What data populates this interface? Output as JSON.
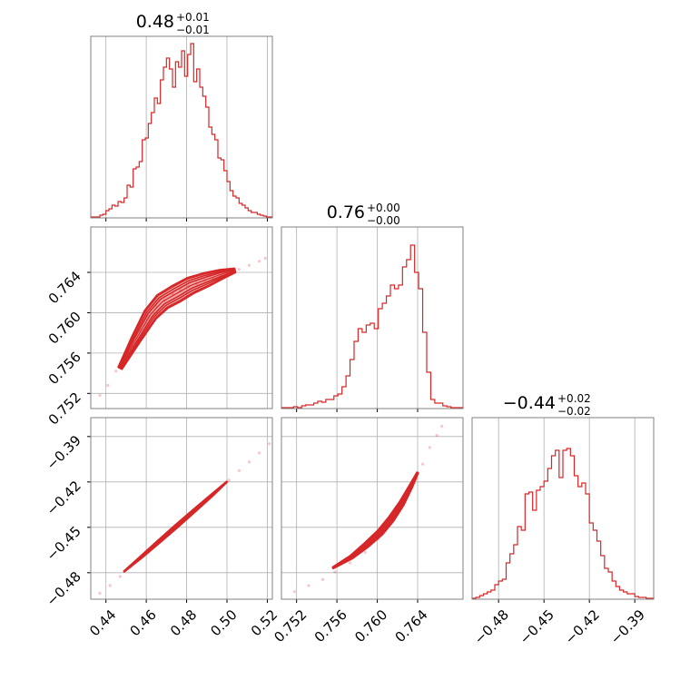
{
  "chart_data": {
    "type": "corner",
    "color": "#d62728",
    "panel_frame_color": "#808080",
    "grid": true,
    "parameters": [
      {
        "title_value": "0.48",
        "title_plus": "+0.01",
        "title_minus": "−0.01",
        "range": [
          0.4325,
          0.5225
        ],
        "ticks": [
          0.44,
          0.46,
          0.48,
          0.5,
          0.52
        ],
        "tick_labels": [
          "0.44",
          "0.46",
          "0.48",
          "0.50",
          "0.52"
        ],
        "histogram": {
          "bin_start": 0.4325,
          "bin_end": 0.5225,
          "heights": [
            0.005,
            0.005,
            0.005,
            0.015,
            0.02,
            0.04,
            0.05,
            0.07,
            0.065,
            0.09,
            0.085,
            0.11,
            0.18,
            0.17,
            0.27,
            0.28,
            0.31,
            0.43,
            0.44,
            0.52,
            0.58,
            0.66,
            0.63,
            0.76,
            0.83,
            0.88,
            0.82,
            0.72,
            0.86,
            0.83,
            0.92,
            0.78,
            0.9,
            0.96,
            0.75,
            0.82,
            0.72,
            0.67,
            0.61,
            0.5,
            0.46,
            0.43,
            0.33,
            0.32,
            0.26,
            0.2,
            0.15,
            0.12,
            0.11,
            0.08,
            0.07,
            0.055,
            0.04,
            0.03,
            0.03,
            0.02,
            0.015,
            0.01,
            0.005,
            0.005
          ]
        }
      },
      {
        "title_value": "0.76",
        "title_plus": "+0.00",
        "title_minus": "−0.00",
        "range": [
          0.7505,
          0.7685
        ],
        "ticks": [
          0.752,
          0.756,
          0.76,
          0.764
        ],
        "tick_labels": [
          "0.752",
          "0.756",
          "0.760",
          "0.764"
        ],
        "histogram": {
          "bin_start": 0.7505,
          "bin_end": 0.7685,
          "heights": [
            0.005,
            0.005,
            0.005,
            0.01,
            0.005,
            0.015,
            0.02,
            0.02,
            0.03,
            0.04,
            0.035,
            0.05,
            0.05,
            0.07,
            0.08,
            0.12,
            0.18,
            0.27,
            0.37,
            0.44,
            0.42,
            0.46,
            0.47,
            0.44,
            0.55,
            0.58,
            0.62,
            0.68,
            0.66,
            0.68,
            0.78,
            0.82,
            0.9,
            0.75,
            0.66,
            0.42,
            0.2,
            0.05,
            0.03,
            0.03,
            0.015,
            0.01,
            0.005,
            0.005,
            0.005
          ]
        }
      },
      {
        "title_value": "−0.44",
        "title_plus": "+0.02",
        "title_minus": "−0.02",
        "range": [
          -0.4975,
          -0.3775
        ],
        "ticks": [
          -0.48,
          -0.45,
          -0.42,
          -0.39
        ],
        "tick_labels": [
          "−0.48",
          "−0.45",
          "−0.42",
          "−0.39"
        ],
        "histogram": {
          "bin_start": -0.4975,
          "bin_end": -0.3775,
          "heights": [
            0.005,
            0.01,
            0.02,
            0.03,
            0.04,
            0.05,
            0.08,
            0.1,
            0.11,
            0.2,
            0.25,
            0.3,
            0.4,
            0.38,
            0.58,
            0.59,
            0.49,
            0.6,
            0.62,
            0.65,
            0.72,
            0.79,
            0.82,
            0.67,
            0.82,
            0.83,
            0.79,
            0.68,
            0.62,
            0.64,
            0.58,
            0.42,
            0.38,
            0.32,
            0.24,
            0.17,
            0.15,
            0.1,
            0.07,
            0.05,
            0.04,
            0.03,
            0.03,
            0.015,
            0.01,
            0.01,
            0.005,
            0.005
          ]
        }
      }
    ],
    "pair_panels": [
      {
        "x_param": 0,
        "y_param": 1,
        "samples": [
          [
            0.437,
            0.7518
          ],
          [
            0.441,
            0.7528
          ],
          [
            0.445,
            0.7542
          ],
          [
            0.449,
            0.7553
          ],
          [
            0.453,
            0.7567
          ],
          [
            0.457,
            0.7583
          ],
          [
            0.461,
            0.7596
          ],
          [
            0.465,
            0.7606
          ],
          [
            0.469,
            0.7612
          ],
          [
            0.473,
            0.7619
          ],
          [
            0.477,
            0.7622
          ],
          [
            0.481,
            0.7626
          ],
          [
            0.485,
            0.7629
          ],
          [
            0.489,
            0.7632
          ],
          [
            0.493,
            0.7634
          ],
          [
            0.497,
            0.7637
          ],
          [
            0.501,
            0.7639
          ],
          [
            0.506,
            0.7643
          ],
          [
            0.511,
            0.7647
          ],
          [
            0.516,
            0.7651
          ],
          [
            0.519,
            0.7654
          ]
        ],
        "ridge": [
          [
            0.447,
            0.7545
          ],
          [
            0.455,
            0.7574
          ],
          [
            0.462,
            0.7598
          ],
          [
            0.468,
            0.7611
          ],
          [
            0.475,
            0.7619
          ],
          [
            0.482,
            0.7627
          ],
          [
            0.49,
            0.7633
          ],
          [
            0.497,
            0.7638
          ],
          [
            0.504,
            0.7642
          ]
        ],
        "half_width": 0.0009,
        "contour_levels": [
          0.35,
          0.6,
          0.85,
          1.0
        ]
      },
      {
        "x_param": 0,
        "y_param": 2,
        "samples": [
          [
            0.437,
            -0.4935
          ],
          [
            0.442,
            -0.4885
          ],
          [
            0.447,
            -0.4825
          ],
          [
            0.452,
            -0.4762
          ],
          [
            0.457,
            -0.4705
          ],
          [
            0.463,
            -0.4635
          ],
          [
            0.468,
            -0.4575
          ],
          [
            0.474,
            -0.4505
          ],
          [
            0.479,
            -0.4445
          ],
          [
            0.485,
            -0.4372
          ],
          [
            0.49,
            -0.4315
          ],
          [
            0.496,
            -0.4248
          ],
          [
            0.501,
            -0.4188
          ],
          [
            0.506,
            -0.4125
          ],
          [
            0.511,
            -0.4068
          ],
          [
            0.516,
            -0.4008
          ],
          [
            0.521,
            -0.3948
          ]
        ],
        "ridge": [
          [
            0.449,
            -0.4792
          ],
          [
            0.457,
            -0.4702
          ],
          [
            0.466,
            -0.4597
          ],
          [
            0.475,
            -0.4492
          ],
          [
            0.484,
            -0.4387
          ],
          [
            0.493,
            -0.4282
          ],
          [
            0.5,
            -0.4198
          ]
        ],
        "half_width": 0.0012,
        "contour_levels": [
          0.35,
          0.6,
          0.85,
          1.0
        ]
      },
      {
        "x_param": 1,
        "y_param": 2,
        "samples": [
          [
            0.7518,
            -0.4925
          ],
          [
            0.7532,
            -0.4885
          ],
          [
            0.7546,
            -0.4845
          ],
          [
            0.7558,
            -0.4795
          ],
          [
            0.7573,
            -0.4735
          ],
          [
            0.7588,
            -0.4665
          ],
          [
            0.7601,
            -0.4578
          ],
          [
            0.7612,
            -0.4482
          ],
          [
            0.7622,
            -0.4382
          ],
          [
            0.763,
            -0.4282
          ],
          [
            0.7638,
            -0.4182
          ],
          [
            0.7645,
            -0.4082
          ],
          [
            0.7652,
            -0.3972
          ],
          [
            0.7659,
            -0.3892
          ],
          [
            0.7664,
            -0.3832
          ]
        ],
        "ridge": [
          [
            0.7556,
            -0.4768
          ],
          [
            0.7574,
            -0.4698
          ],
          [
            0.7589,
            -0.4618
          ],
          [
            0.7603,
            -0.4533
          ],
          [
            0.7614,
            -0.4443
          ],
          [
            0.7624,
            -0.4343
          ],
          [
            0.7633,
            -0.4233
          ],
          [
            0.764,
            -0.4138
          ]
        ],
        "half_width": 0.0022,
        "contour_levels": [
          0.35,
          0.6,
          0.85,
          1.0
        ]
      }
    ]
  }
}
